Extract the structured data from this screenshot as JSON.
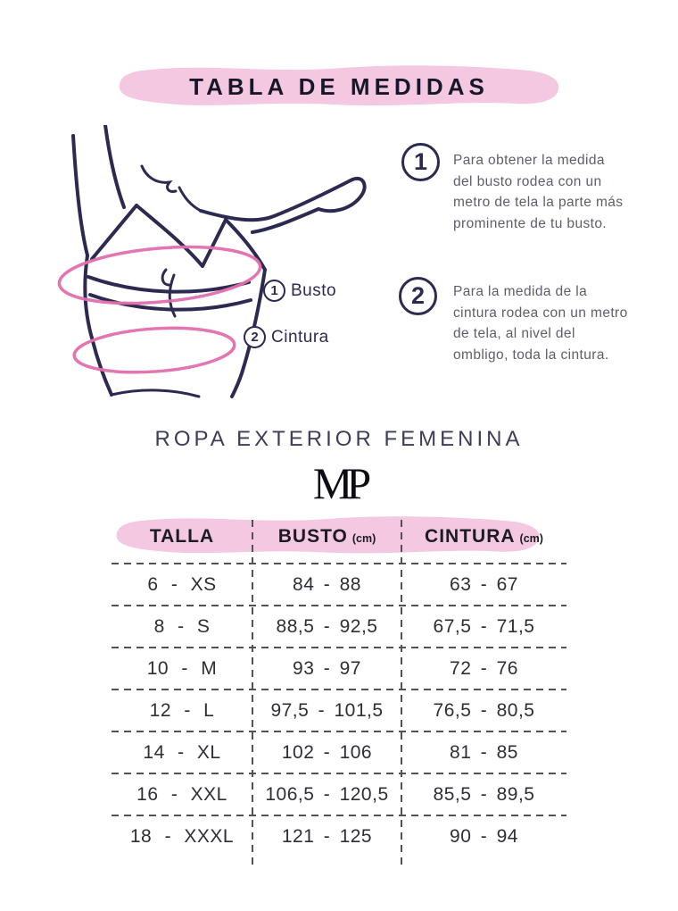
{
  "title": "TABLA DE MEDIDAS",
  "diagram": {
    "labels": [
      {
        "num": "1",
        "text": "Busto"
      },
      {
        "num": "2",
        "text": "Cintura"
      }
    ]
  },
  "instructions": [
    {
      "num": "1",
      "text": "Para obtener la medida del busto rodea con un metro de tela la parte más prominente de tu busto."
    },
    {
      "num": "2",
      "text": "Para la medida de la cintura rodea con un metro de tela, al nivel del ombligo, toda la cintura."
    }
  ],
  "section": {
    "heading": "ROPA EXTERIOR FEMENINA",
    "logo": "MP"
  },
  "table": {
    "headers": [
      {
        "label": "TALLA",
        "unit": ""
      },
      {
        "label": "BUSTO",
        "unit": "(cm)"
      },
      {
        "label": "CINTURA",
        "unit": "(cm)"
      }
    ],
    "rows": [
      {
        "talla": "6 - XS",
        "busto": "84 - 88",
        "cintura": "63 - 67"
      },
      {
        "talla": "8 - S",
        "busto": "88,5 - 92,5",
        "cintura": "67,5 - 71,5"
      },
      {
        "talla": "10 - M",
        "busto": "93 - 97",
        "cintura": "72 - 76"
      },
      {
        "talla": "12 - L",
        "busto": "97,5 - 101,5",
        "cintura": "76,5 - 80,5"
      },
      {
        "talla": "14 - XL",
        "busto": "102 - 106",
        "cintura": "81 - 85"
      },
      {
        "talla": "16 - XXL",
        "busto": "106,5 - 120,5",
        "cintura": "85,5 - 89,5"
      },
      {
        "talla": "18 - XXXL",
        "busto": "121 - 125",
        "cintura": "90 - 94"
      }
    ]
  },
  "colors": {
    "blob_pink": "#f3c8e0",
    "ellipse_pink": "#e26fad",
    "line_navy": "#2d2a52",
    "body_text_gray": "#5e5e6c",
    "dash_gray": "#515157"
  },
  "chart_data": {
    "type": "table",
    "title": "TABLA DE MEDIDAS — ROPA EXTERIOR FEMENINA",
    "columns": [
      "TALLA",
      "BUSTO (cm)",
      "CINTURA (cm)"
    ],
    "rows": [
      [
        "6 - XS",
        "84 - 88",
        "63 - 67"
      ],
      [
        "8 - S",
        "88,5 - 92,5",
        "67,5 - 71,5"
      ],
      [
        "10 - M",
        "93 - 97",
        "72 - 76"
      ],
      [
        "12 - L",
        "97,5 - 101,5",
        "76,5 - 80,5"
      ],
      [
        "14 - XL",
        "102 - 106",
        "81 - 85"
      ],
      [
        "16 - XXL",
        "106,5 - 120,5",
        "85,5 - 89,5"
      ],
      [
        "18 - XXXL",
        "121 - 125",
        "90 - 94"
      ]
    ]
  }
}
